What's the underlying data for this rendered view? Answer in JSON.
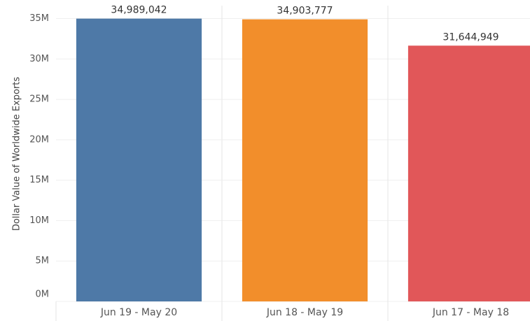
{
  "chart_data": {
    "type": "bar",
    "y_label": "Dollar Value of Worldwide Exports",
    "categories": [
      "Jun 19 - May 20",
      "Jun 18 - May 19",
      "Jun 17 - May 18"
    ],
    "values": [
      34989042,
      34903777,
      31644949
    ],
    "value_labels": [
      "34,989,042",
      "34,903,777",
      "31,644,949"
    ],
    "colors": [
      "#4e79a7",
      "#f28e2b",
      "#e15759"
    ],
    "ylim": [
      0,
      36600000
    ],
    "yticks": [
      {
        "value": 0,
        "label": "0M"
      },
      {
        "value": 5000000,
        "label": "5M"
      },
      {
        "value": 10000000,
        "label": "10M"
      },
      {
        "value": 15000000,
        "label": "15M"
      },
      {
        "value": 20000000,
        "label": "20M"
      },
      {
        "value": 25000000,
        "label": "25M"
      },
      {
        "value": 30000000,
        "label": "30M"
      },
      {
        "value": 35000000,
        "label": "35M"
      }
    ],
    "grid": true
  }
}
